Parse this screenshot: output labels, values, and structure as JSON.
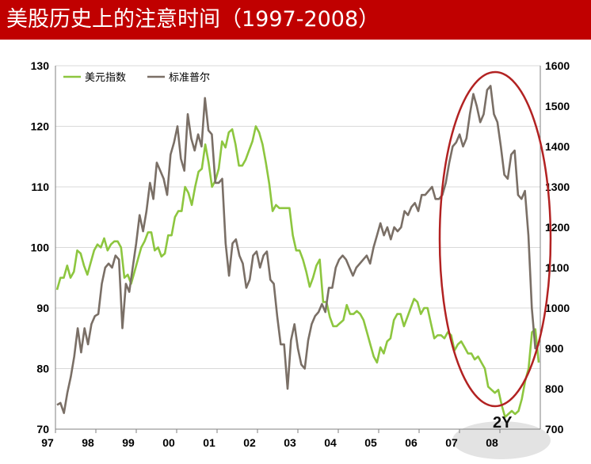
{
  "header": {
    "title": "美股历史上的注意时间（1997-2008）"
  },
  "chart_data": {
    "type": "line",
    "x_labels": [
      "97",
      "98",
      "99",
      "00",
      "01",
      "02",
      "03",
      "04",
      "05",
      "06",
      "07",
      "08"
    ],
    "y_left": {
      "min": 70,
      "max": 130,
      "ticks": [
        70,
        80,
        90,
        100,
        110,
        120,
        130
      ]
    },
    "y_right": {
      "min": 700,
      "max": 1600,
      "ticks": [
        700,
        800,
        900,
        1000,
        1100,
        1200,
        1300,
        1400,
        1500,
        1600
      ]
    },
    "legend_position": "top-left",
    "series": [
      {
        "name": "美元指数",
        "axis": "left",
        "color": "#8dc63f",
        "values": [
          93,
          95,
          95,
          97,
          95,
          96,
          99.5,
          99,
          97,
          95.5,
          97.5,
          99.5,
          100.5,
          100,
          101.5,
          99.5,
          100.5,
          101,
          101,
          100,
          95,
          95.5,
          94,
          96,
          98,
          100,
          101,
          102.5,
          102.5,
          99.5,
          100,
          98.5,
          99,
          102,
          102,
          105,
          106,
          106,
          110,
          109,
          107,
          110,
          112.5,
          113,
          117,
          114,
          110,
          111,
          113,
          117.5,
          116.5,
          119,
          119.5,
          117,
          113.5,
          113.5,
          114.5,
          116,
          117.5,
          120,
          119,
          117,
          114,
          110.5,
          106,
          107,
          106.5,
          106.5,
          106.5,
          106.5,
          102,
          99.5,
          99.5,
          98,
          96,
          93.5,
          95,
          97,
          98,
          91,
          91,
          88.5,
          87,
          87,
          87.5,
          88,
          90.5,
          89,
          89,
          89.5,
          89,
          88,
          86,
          84,
          82,
          81,
          83.5,
          82.5,
          84.5,
          85,
          88,
          89,
          89,
          87,
          88.5,
          90,
          91.5,
          91,
          89,
          90,
          90,
          87.5,
          85,
          85.5,
          85.5,
          85,
          86,
          85.5,
          83,
          84,
          84.5,
          83.5,
          82.5,
          82.5,
          81.5,
          82,
          81,
          80,
          77,
          76.5,
          76,
          76.5,
          74,
          72,
          72.5,
          73,
          72.5,
          73,
          75,
          78,
          80,
          86,
          86.5,
          81
        ]
      },
      {
        "name": "标准普尔",
        "axis": "right",
        "color": "#7a6f66",
        "values": [
          760,
          765,
          740,
          790,
          830,
          880,
          950,
          890,
          950,
          910,
          960,
          980,
          985,
          1060,
          1100,
          1110,
          1100,
          1130,
          1120,
          950,
          1060,
          1040,
          1100,
          1160,
          1230,
          1190,
          1240,
          1310,
          1270,
          1360,
          1340,
          1320,
          1280,
          1380,
          1410,
          1450,
          1370,
          1340,
          1480,
          1420,
          1390,
          1430,
          1400,
          1520,
          1440,
          1430,
          1310,
          1310,
          1320,
          1160,
          1080,
          1160,
          1170,
          1130,
          1110,
          1050,
          1070,
          1130,
          1140,
          1100,
          1130,
          1140,
          1070,
          1060,
          980,
          910,
          910,
          800,
          920,
          960,
          900,
          860,
          850,
          920,
          960,
          980,
          990,
          1010,
          990,
          1050,
          1050,
          1100,
          1120,
          1130,
          1120,
          1100,
          1080,
          1100,
          1110,
          1120,
          1130,
          1110,
          1150,
          1180,
          1210,
          1180,
          1200,
          1170,
          1200,
          1190,
          1200,
          1240,
          1230,
          1250,
          1260,
          1240,
          1280,
          1280,
          1290,
          1300,
          1270,
          1270,
          1280,
          1310,
          1360,
          1400,
          1410,
          1430,
          1400,
          1420,
          1480,
          1530,
          1500,
          1460,
          1480,
          1540,
          1550,
          1480,
          1460,
          1400,
          1330,
          1320,
          1380,
          1390,
          1280,
          1270,
          1290,
          1180,
          1000,
          900,
          910
        ]
      }
    ]
  },
  "annotations": {
    "bottom_label": "2Y"
  },
  "colors": {
    "header_bg": "#c00000",
    "ellipse": "#b22222",
    "highlight": "#e3e3e3"
  }
}
